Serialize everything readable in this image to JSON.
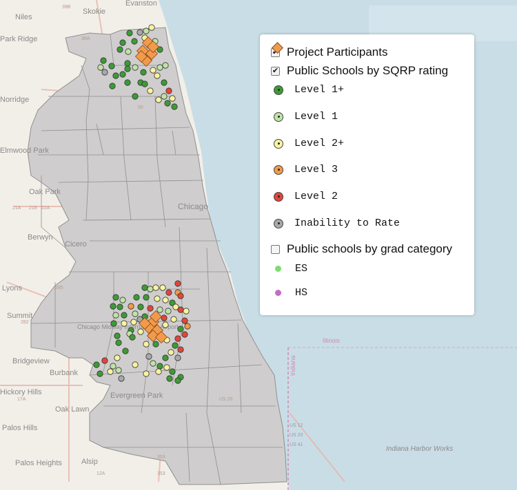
{
  "map": {
    "colors": {
      "land": "#f2efe9",
      "water": "#c9dde6",
      "region": "#cfcdcd",
      "region_border": "#8f8f8f",
      "level1plus": "#3d9b35",
      "level1": "#bfe3a6",
      "level2plus": "#f7f3a0",
      "level3": "#f19b4a",
      "level2": "#e0473a",
      "unrated": "#a8a8a8",
      "participant": "#f29a4c",
      "es": "#7edc6c",
      "hs": "#c46cc4"
    },
    "place_labels": [
      "Skokie",
      "Evanston",
      "Niles",
      "Park Ridge",
      "Norridge",
      "Elmwood Park",
      "Oak Park",
      "Berwyn",
      "Cicero",
      "Lyons",
      "Summit",
      "Chicago",
      "Chicago Midway International Airport",
      "Bridgeview",
      "Burbank",
      "Hickory Hills",
      "Evergreen Park",
      "Oak Lawn",
      "Palos Hills",
      "Palos Heights",
      "Alsip",
      "Illinois",
      "Indiana",
      "Indiana Harbor Works"
    ],
    "road_shields": [
      "39B",
      "39A",
      "41A",
      "14",
      "19",
      "21A",
      "50",
      "64",
      "72",
      "43",
      "21B",
      "22A",
      "218",
      "21A",
      "23A",
      "24",
      "74",
      "285",
      "282",
      "284",
      "24A",
      "26",
      "43",
      "12A",
      "17A",
      "18",
      "19",
      "US 20",
      "US 12",
      "US 20",
      "US 41",
      "353",
      "353",
      "12",
      "134"
    ]
  },
  "legend": {
    "participants_label": "Project Participants",
    "participants_checked": "✔",
    "sqrp_label": "Public Schools by SQRP rating",
    "sqrp_checked": "✔",
    "levels": [
      {
        "label": "Level 1+"
      },
      {
        "label": "Level 1"
      },
      {
        "label": "Level 2+"
      },
      {
        "label": "Level 3"
      },
      {
        "label": "Level 2"
      },
      {
        "label": "Inability to Rate"
      }
    ],
    "grad_label": "Public schools by grad category",
    "grad_checked": "",
    "grad_items": [
      {
        "label": "ES"
      },
      {
        "label": "HS"
      }
    ]
  }
}
